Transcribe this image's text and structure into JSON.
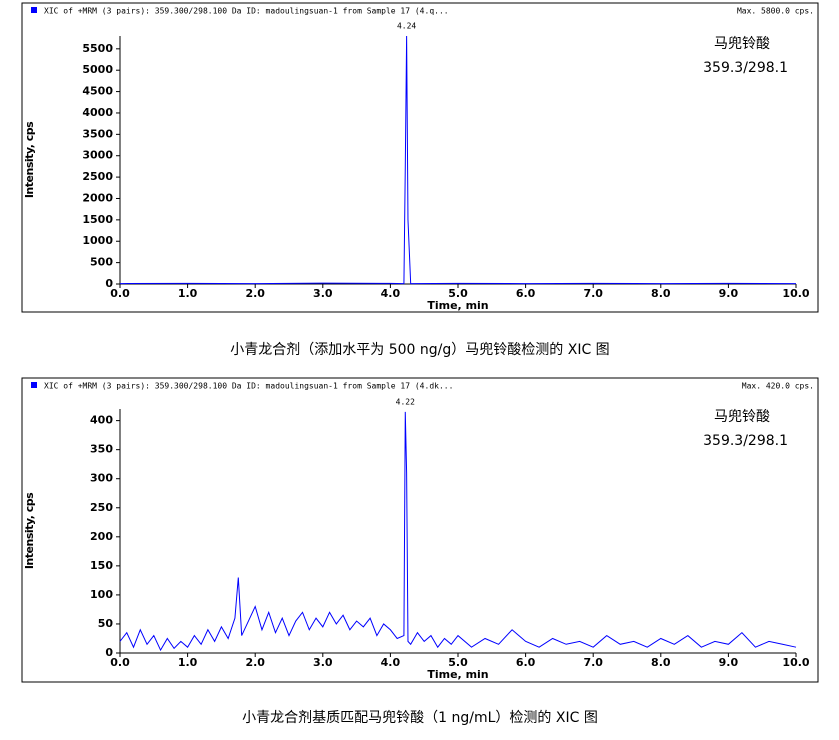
{
  "chart_data": [
    {
      "type": "line",
      "header": "XIC of +MRM (3 pairs): 359.300/298.100 Da ID: madoulingsuan-1 from Sample 17 (4.q...",
      "max_label": "Max. 5800.0 cps.",
      "annotation": [
        "马兜铃酸",
        "359.3/298.1"
      ],
      "peak_label": "4.24",
      "xlabel": "Time, min",
      "ylabel": "Intensity, cps",
      "caption": "小青龙合剂（添加水平为 500 ng/g）马兜铃酸检测的 XIC 图",
      "x": [
        0,
        1,
        2,
        3,
        4,
        4.2,
        4.22,
        4.24,
        4.26,
        4.3,
        5,
        6,
        7,
        8,
        9,
        10
      ],
      "series": [
        {
          "name": "XIC",
          "color": "#0000ff",
          "values": [
            10,
            15,
            10,
            20,
            15,
            10,
            2700,
            5800,
            1500,
            10,
            15,
            10,
            15,
            10,
            15,
            10
          ]
        }
      ],
      "xlim": [
        0,
        10
      ],
      "xticks": [
        {
          "value": 0,
          "label": "0.0"
        },
        {
          "value": 1,
          "label": "1.0"
        },
        {
          "value": 2,
          "label": "2.0"
        },
        {
          "value": 3,
          "label": "3.0"
        },
        {
          "value": 4,
          "label": "4.0"
        },
        {
          "value": 5,
          "label": "5.0"
        },
        {
          "value": 6,
          "label": "6.0"
        },
        {
          "value": 7,
          "label": "7.0"
        },
        {
          "value": 8,
          "label": "8.0"
        },
        {
          "value": 9,
          "label": "9.0"
        },
        {
          "value": 10,
          "label": "10.0"
        }
      ],
      "ylim": [
        0,
        5800
      ],
      "yticks": [
        0,
        500,
        1000,
        1500,
        2000,
        2500,
        3000,
        3500,
        4000,
        4500,
        5000,
        5500
      ]
    },
    {
      "type": "line",
      "header": "XIC of +MRM (3 pairs): 359.300/298.100 Da ID: madoulingsuan-1 from Sample 17 (4.dk...",
      "max_label": "Max. 420.0 cps.",
      "annotation": [
        "马兜铃酸",
        "359.3/298.1"
      ],
      "peak_label": "4.22",
      "xlabel": "Time, min",
      "ylabel": "Intensity, cps",
      "caption": "小青龙合剂基质匹配马兜铃酸（1 ng/mL）检测的 XIC 图",
      "x": [
        0,
        0.1,
        0.2,
        0.3,
        0.4,
        0.5,
        0.6,
        0.7,
        0.8,
        0.9,
        1.0,
        1.1,
        1.2,
        1.3,
        1.4,
        1.5,
        1.6,
        1.7,
        1.75,
        1.8,
        1.9,
        2.0,
        2.1,
        2.2,
        2.3,
        2.4,
        2.5,
        2.6,
        2.7,
        2.8,
        2.9,
        3.0,
        3.1,
        3.2,
        3.3,
        3.4,
        3.5,
        3.6,
        3.7,
        3.8,
        3.9,
        4.0,
        4.1,
        4.2,
        4.22,
        4.24,
        4.26,
        4.3,
        4.4,
        4.5,
        4.6,
        4.7,
        4.8,
        4.9,
        5.0,
        5.2,
        5.4,
        5.6,
        5.8,
        6.0,
        6.2,
        6.4,
        6.6,
        6.8,
        7.0,
        7.2,
        7.4,
        7.6,
        7.8,
        8.0,
        8.2,
        8.4,
        8.6,
        8.8,
        9.0,
        9.2,
        9.4,
        9.6,
        9.8,
        10.0
      ],
      "series": [
        {
          "name": "XIC",
          "color": "#0000ff",
          "values": [
            20,
            35,
            10,
            40,
            15,
            30,
            5,
            25,
            8,
            20,
            10,
            30,
            15,
            40,
            20,
            45,
            25,
            60,
            130,
            30,
            55,
            80,
            40,
            70,
            35,
            60,
            30,
            55,
            70,
            40,
            60,
            45,
            70,
            50,
            65,
            40,
            55,
            45,
            60,
            30,
            50,
            40,
            25,
            30,
            415,
            310,
            20,
            15,
            35,
            20,
            30,
            10,
            25,
            15,
            30,
            10,
            25,
            15,
            40,
            20,
            10,
            25,
            15,
            20,
            10,
            30,
            15,
            20,
            10,
            25,
            15,
            30,
            10,
            20,
            15,
            35,
            10,
            20,
            15,
            10
          ]
        }
      ],
      "xlim": [
        0,
        10
      ],
      "xticks": [
        {
          "value": 0,
          "label": "0.0"
        },
        {
          "value": 1,
          "label": "1.0"
        },
        {
          "value": 2,
          "label": "2.0"
        },
        {
          "value": 3,
          "label": "3.0"
        },
        {
          "value": 4,
          "label": "4.0"
        },
        {
          "value": 5,
          "label": "5.0"
        },
        {
          "value": 6,
          "label": "6.0"
        },
        {
          "value": 7,
          "label": "7.0"
        },
        {
          "value": 8,
          "label": "8.0"
        },
        {
          "value": 9,
          "label": "9.0"
        },
        {
          "value": 10,
          "label": "10.0"
        }
      ],
      "ylim": [
        0,
        420
      ],
      "yticks": [
        0,
        50,
        100,
        150,
        200,
        250,
        300,
        350,
        400
      ]
    }
  ]
}
